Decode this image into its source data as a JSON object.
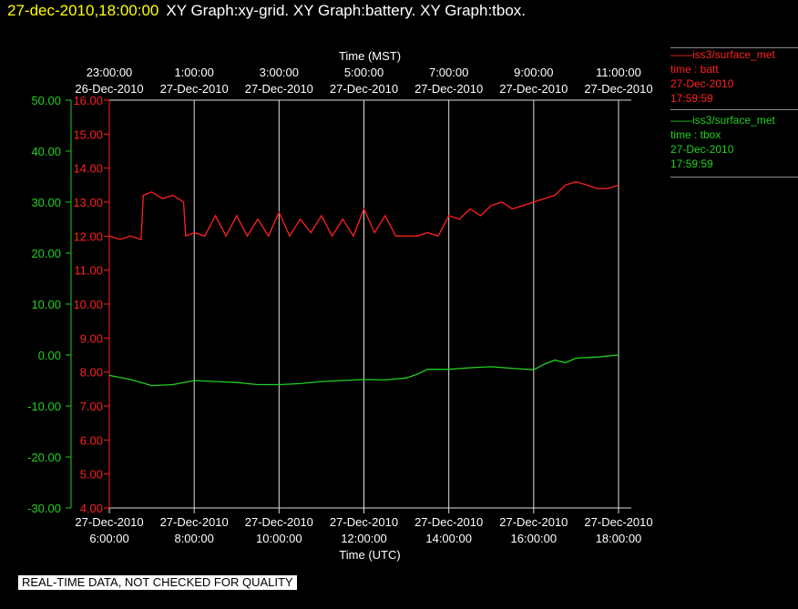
{
  "header": {
    "datetime": "27-dec-2010,18:00:00",
    "graphs": "XY Graph:xy-grid.  XY Graph:battery.  XY Graph:tbox."
  },
  "legend": [
    {
      "name": "iss3/surface_met",
      "variable": "time : batt",
      "date": "27-Dec-2010",
      "time": "17:59:59",
      "color": "#ff2020"
    },
    {
      "name": "iss3/surface_met",
      "variable": "time : tbox",
      "date": "27-Dec-2010",
      "time": "17:59:59",
      "color": "#20d020"
    }
  ],
  "footer": "REAL-TIME DATA, NOT CHECKED FOR QUALITY",
  "chart_data": {
    "type": "line",
    "grid": true,
    "xlabel_top": "Time (MST)",
    "xlabel_bottom": "Time (UTC)",
    "x_unit": "hours UTC",
    "xlim": [
      6,
      18
    ],
    "top_ticks": [
      {
        "x": 6,
        "time": "23:00:00",
        "date": "26-Dec-2010"
      },
      {
        "x": 8,
        "time": "1:00:00",
        "date": "27-Dec-2010"
      },
      {
        "x": 10,
        "time": "3:00:00",
        "date": "27-Dec-2010"
      },
      {
        "x": 12,
        "time": "5:00:00",
        "date": "27-Dec-2010"
      },
      {
        "x": 14,
        "time": "7:00:00",
        "date": "27-Dec-2010"
      },
      {
        "x": 16,
        "time": "9:00:00",
        "date": "27-Dec-2010"
      },
      {
        "x": 18,
        "time": "11:00:00",
        "date": "27-Dec-2010"
      }
    ],
    "bottom_ticks": [
      {
        "x": 6,
        "date": "27-Dec-2010",
        "time": "6:00:00"
      },
      {
        "x": 8,
        "date": "27-Dec-2010",
        "time": "8:00:00"
      },
      {
        "x": 10,
        "date": "27-Dec-2010",
        "time": "10:00:00"
      },
      {
        "x": 12,
        "date": "27-Dec-2010",
        "time": "12:00:00"
      },
      {
        "x": 14,
        "date": "27-Dec-2010",
        "time": "14:00:00"
      },
      {
        "x": 16,
        "date": "27-Dec-2010",
        "time": "16:00:00"
      },
      {
        "x": 18,
        "date": "27-Dec-2010",
        "time": "18:00:00"
      }
    ],
    "axes": [
      {
        "id": "tbox",
        "ylim": [
          -30,
          50
        ],
        "ticks": [
          "50.00",
          "40.00",
          "30.00",
          "20.00",
          "10.00",
          "0.00",
          "-10.00",
          "-20.00",
          "-30.00"
        ],
        "color": "#20d020"
      },
      {
        "id": "batt",
        "ylim": [
          4,
          16
        ],
        "ticks": [
          "16.00",
          "15.00",
          "14.00",
          "13.00",
          "12.00",
          "11.00",
          "10.00",
          "9.00",
          "8.00",
          "7.00",
          "6.00",
          "5.00",
          "4.00"
        ],
        "color": "#ff2020"
      }
    ],
    "series": [
      {
        "axis": "batt",
        "color": "#ff2020",
        "x": [
          6.0,
          6.25,
          6.5,
          6.75,
          6.8,
          7.0,
          7.25,
          7.5,
          7.75,
          7.8,
          8.0,
          8.25,
          8.5,
          8.75,
          9.0,
          9.25,
          9.5,
          9.75,
          10.0,
          10.25,
          10.5,
          10.75,
          11.0,
          11.25,
          11.5,
          11.75,
          12.0,
          12.25,
          12.5,
          12.75,
          13.0,
          13.25,
          13.5,
          13.75,
          14.0,
          14.25,
          14.5,
          14.75,
          15.0,
          15.25,
          15.5,
          15.75,
          16.0,
          16.25,
          16.5,
          16.75,
          17.0,
          17.25,
          17.5,
          17.75,
          18.0
        ],
        "y": [
          12.0,
          11.9,
          12.0,
          11.9,
          13.2,
          13.3,
          13.1,
          13.2,
          13.0,
          12.0,
          12.1,
          12.0,
          12.6,
          12.0,
          12.6,
          12.0,
          12.5,
          12.0,
          12.7,
          12.0,
          12.5,
          12.1,
          12.6,
          12.0,
          12.5,
          12.0,
          12.8,
          12.1,
          12.6,
          12.0,
          12.0,
          12.0,
          12.1,
          12.0,
          12.6,
          12.5,
          12.8,
          12.6,
          12.9,
          13.0,
          12.8,
          12.9,
          13.0,
          13.1,
          13.2,
          13.5,
          13.6,
          13.5,
          13.4,
          13.4,
          13.5
        ]
      },
      {
        "axis": "tbox",
        "color": "#20d020",
        "x": [
          6.0,
          6.5,
          7.0,
          7.5,
          8.0,
          8.5,
          9.0,
          9.5,
          10.0,
          10.5,
          11.0,
          11.5,
          12.0,
          12.5,
          13.0,
          13.25,
          13.5,
          14.0,
          14.5,
          15.0,
          15.5,
          16.0,
          16.25,
          16.5,
          16.75,
          17.0,
          17.5,
          18.0
        ],
        "y": [
          -4.0,
          -4.8,
          -6.0,
          -5.8,
          -5.0,
          -5.2,
          -5.4,
          -5.8,
          -5.8,
          -5.6,
          -5.2,
          -5.0,
          -4.8,
          -4.9,
          -4.5,
          -3.8,
          -2.8,
          -2.8,
          -2.5,
          -2.3,
          -2.6,
          -2.9,
          -1.8,
          -1.0,
          -1.5,
          -0.6,
          -0.4,
          0.0
        ]
      }
    ]
  }
}
